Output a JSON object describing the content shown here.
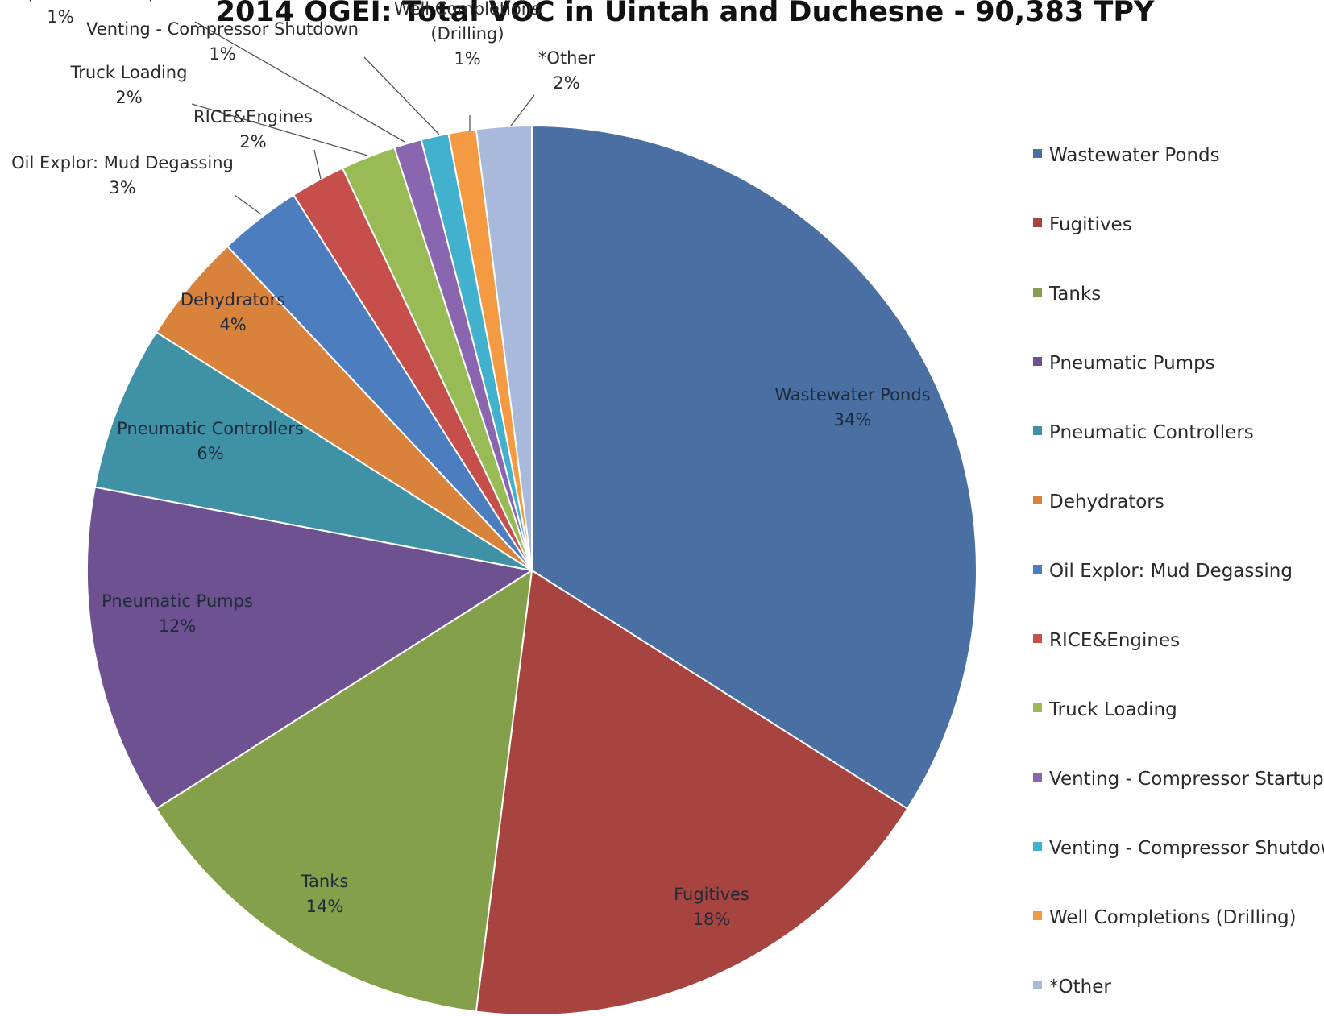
{
  "chart_data": {
    "type": "pie",
    "title": "2014 OGEI: Total VOC in Uintah and Duchesne - 90,383 TPY",
    "legend_position": "right",
    "slices": [
      {
        "name": "Wastewater Ponds",
        "label_lines": [
          "Wastewater Ponds",
          "34%"
        ],
        "value": 34,
        "color": "#4a6fa3"
      },
      {
        "name": "Fugitives",
        "label_lines": [
          "Fugitives",
          "18%"
        ],
        "value": 18,
        "color": "#a8443f"
      },
      {
        "name": "Tanks",
        "label_lines": [
          "Tanks",
          "14%"
        ],
        "value": 14,
        "color": "#84a04a"
      },
      {
        "name": "Pneumatic Pumps",
        "label_lines": [
          "Pneumatic Pumps",
          "12%"
        ],
        "value": 12,
        "color": "#6e5190"
      },
      {
        "name": "Pneumatic Controllers",
        "label_lines": [
          "Pneumatic Controllers",
          "6%"
        ],
        "value": 6,
        "color": "#3f91a6"
      },
      {
        "name": "Dehydrators",
        "label_lines": [
          "Dehydrators",
          "4%"
        ],
        "value": 4,
        "color": "#d8823c"
      },
      {
        "name": "Oil Explor:  Mud Degassing",
        "label_lines": [
          "Oil Explor:  Mud Degassing",
          "3%"
        ],
        "value": 3,
        "color": "#4c7dbf"
      },
      {
        "name": "RICE&Engines",
        "label_lines": [
          "RICE&Engines",
          "2%"
        ],
        "value": 2,
        "color": "#c64f4c"
      },
      {
        "name": "Truck Loading",
        "label_lines": [
          "Truck Loading",
          "2%"
        ],
        "value": 2,
        "color": "#99bb55"
      },
      {
        "name": "Venting - Compressor Startup",
        "label_lines": [
          "g - Compressor Startup",
          "1%"
        ],
        "value": 1,
        "color": "#8a66b0"
      },
      {
        "name": "Venting - Compressor Shutdown",
        "label_lines": [
          "Venting - Compressor Shutdown",
          "1%"
        ],
        "value": 1,
        "color": "#42b1ce"
      },
      {
        "name": "Well Completions (Drilling)",
        "label_lines": [
          "Well Completions",
          "(Drilling)",
          "1%"
        ],
        "value": 1,
        "color": "#f39a43"
      },
      {
        "name": "*Other",
        "label_lines": [
          "*Other",
          "2%"
        ],
        "value": 2,
        "color": "#a9b9db"
      }
    ]
  }
}
